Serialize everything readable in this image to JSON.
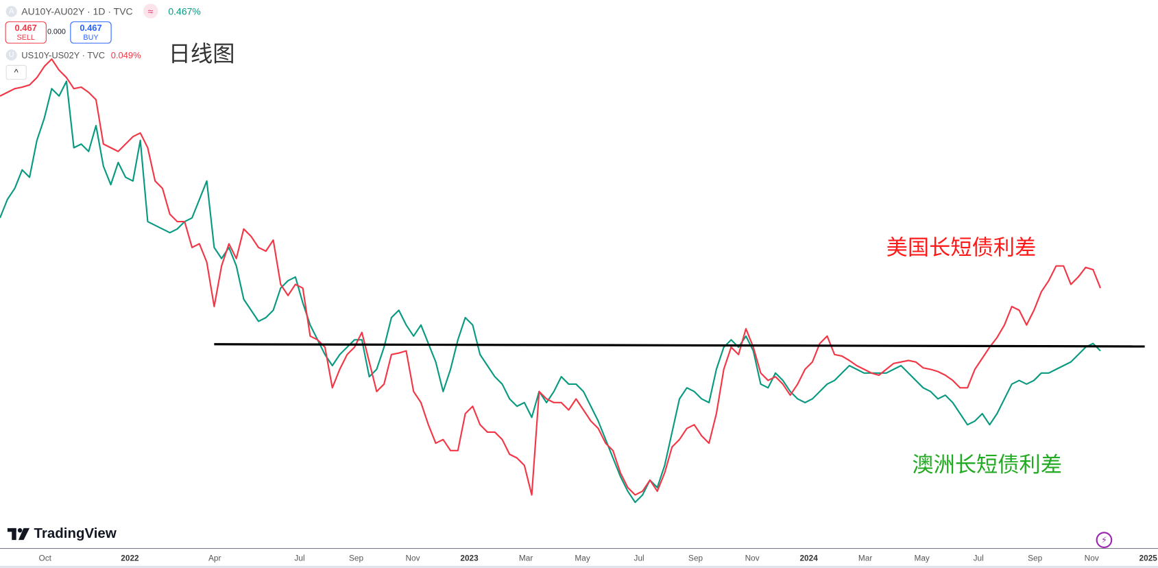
{
  "header": {
    "symbol_badge": "A",
    "symbol": "AU10Y-AU02Y · 1D · TVC",
    "approx_icon": "≈",
    "last_value": "0.467%",
    "sell_price": "0.467",
    "sell_label": "SELL",
    "spread": "0.000",
    "buy_price": "0.467",
    "buy_label": "BUY",
    "compare_badge": "U",
    "compare_symbol": "US10Y-US02Y · TVC",
    "compare_value": "0.049%",
    "collapse_icon": "^"
  },
  "annotations": {
    "timeframe_note": "日线图",
    "us_label": "美国长短债利差",
    "au_label": "澳洲长短债利差"
  },
  "footer": {
    "logo_text": "TradingView",
    "bolt_icon": "⚡"
  },
  "colors": {
    "us_series": "#f23645",
    "au_series": "#089981",
    "us_label": "#ff1a1a",
    "au_label": "#22aa22",
    "hline": "#000000"
  },
  "chart_data": {
    "type": "line",
    "title": "AU10Y-AU02Y vs US10Y-US02Y (1D)",
    "x_start": "2021-08-13",
    "step_days": 8,
    "ylim": [
      0,
      7
    ],
    "y_units": "relative level (overlay, no y-axis labels shown)",
    "x_ticks": [
      {
        "label": "Oct",
        "month": 0
      },
      {
        "label": "2022",
        "month": 3,
        "year": true
      },
      {
        "label": "Apr",
        "month": 6
      },
      {
        "label": "Jul",
        "month": 9
      },
      {
        "label": "Sep",
        "month": 11
      },
      {
        "label": "Nov",
        "month": 13
      },
      {
        "label": "2023",
        "month": 15,
        "year": true
      },
      {
        "label": "Mar",
        "month": 17
      },
      {
        "label": "May",
        "month": 19
      },
      {
        "label": "Jul",
        "month": 21
      },
      {
        "label": "Sep",
        "month": 23
      },
      {
        "label": "Nov",
        "month": 25
      },
      {
        "label": "2024",
        "month": 27,
        "year": true
      },
      {
        "label": "Mar",
        "month": 29
      },
      {
        "label": "May",
        "month": 31
      },
      {
        "label": "Jul",
        "month": 33
      },
      {
        "label": "Sep",
        "month": 35
      },
      {
        "label": "Nov",
        "month": 37
      },
      {
        "label": "2025",
        "month": 39,
        "year": true
      }
    ],
    "hline": {
      "value": 2.33,
      "from_index": 29,
      "to_index": 155
    },
    "series": [
      {
        "name": "US10Y-US02Y",
        "color": "#f23645",
        "values": [
          5.7,
          5.75,
          5.8,
          5.82,
          5.85,
          5.95,
          6.1,
          6.2,
          6.05,
          5.95,
          5.8,
          5.82,
          5.75,
          5.65,
          5.05,
          5.0,
          4.95,
          5.05,
          5.15,
          5.2,
          5.0,
          4.55,
          4.45,
          4.1,
          4.0,
          4.0,
          3.65,
          3.7,
          3.45,
          2.85,
          3.4,
          3.7,
          3.5,
          3.9,
          3.8,
          3.65,
          3.6,
          3.75,
          3.15,
          3.0,
          3.15,
          3.1,
          2.45,
          2.4,
          2.3,
          1.75,
          2.0,
          2.2,
          2.3,
          2.5,
          2.1,
          1.7,
          1.8,
          2.2,
          2.22,
          2.25,
          1.7,
          1.55,
          1.25,
          1.0,
          1.05,
          0.9,
          0.9,
          1.4,
          1.5,
          1.25,
          1.15,
          1.15,
          1.05,
          0.85,
          0.8,
          0.7,
          0.3,
          1.7,
          1.6,
          1.55,
          1.55,
          1.45,
          1.6,
          1.45,
          1.3,
          1.2,
          1.0,
          0.9,
          0.6,
          0.4,
          0.3,
          0.35,
          0.5,
          0.35,
          0.6,
          0.95,
          1.05,
          1.2,
          1.25,
          1.1,
          1.0,
          1.4,
          2.0,
          2.3,
          2.2,
          2.55,
          2.3,
          1.95,
          1.85,
          1.9,
          1.8,
          1.65,
          1.8,
          2.0,
          2.1,
          2.35,
          2.45,
          2.2,
          2.18,
          2.12,
          2.05,
          2.0,
          1.95,
          1.92,
          2.0,
          2.08,
          2.1,
          2.12,
          2.1,
          2.02,
          2.0,
          1.97,
          1.92,
          1.85,
          1.75,
          1.75,
          2.0,
          2.15,
          2.3,
          2.43,
          2.6,
          2.85,
          2.8,
          2.6,
          2.8,
          3.05,
          3.2,
          3.4,
          3.4,
          3.15,
          3.25,
          3.38,
          3.35,
          3.1
        ]
      },
      {
        "name": "AU10Y-AU02Y",
        "color": "#089981",
        "values": [
          4.05,
          4.3,
          4.45,
          4.7,
          4.6,
          5.1,
          5.4,
          5.8,
          5.7,
          5.9,
          5.0,
          5.05,
          4.95,
          5.3,
          4.75,
          4.5,
          4.8,
          4.6,
          4.55,
          5.1,
          4.0,
          3.95,
          3.9,
          3.85,
          3.9,
          4.0,
          4.05,
          4.3,
          4.55,
          3.65,
          3.5,
          3.65,
          3.4,
          2.95,
          2.8,
          2.65,
          2.7,
          2.8,
          3.1,
          3.2,
          3.25,
          2.9,
          2.6,
          2.4,
          2.2,
          2.05,
          2.2,
          2.3,
          2.4,
          2.4,
          1.9,
          2.0,
          2.3,
          2.7,
          2.8,
          2.6,
          2.45,
          2.6,
          2.35,
          2.1,
          1.7,
          2.0,
          2.4,
          2.7,
          2.6,
          2.2,
          2.05,
          1.9,
          1.8,
          1.6,
          1.5,
          1.55,
          1.35,
          1.7,
          1.55,
          1.7,
          1.9,
          1.8,
          1.8,
          1.7,
          1.5,
          1.3,
          1.05,
          0.8,
          0.55,
          0.35,
          0.2,
          0.3,
          0.5,
          0.4,
          0.7,
          1.15,
          1.6,
          1.75,
          1.7,
          1.6,
          1.55,
          2.0,
          2.3,
          2.4,
          2.3,
          2.45,
          2.25,
          1.8,
          1.75,
          1.95,
          1.85,
          1.7,
          1.6,
          1.55,
          1.6,
          1.7,
          1.8,
          1.85,
          1.95,
          2.05,
          2.0,
          1.95,
          1.95,
          1.95,
          1.95,
          2.0,
          2.05,
          1.95,
          1.85,
          1.75,
          1.7,
          1.6,
          1.65,
          1.55,
          1.4,
          1.25,
          1.3,
          1.4,
          1.25,
          1.4,
          1.6,
          1.8,
          1.85,
          1.8,
          1.85,
          1.95,
          1.95,
          2.0,
          2.05,
          2.1,
          2.2,
          2.3,
          2.35,
          2.25
        ]
      }
    ]
  }
}
